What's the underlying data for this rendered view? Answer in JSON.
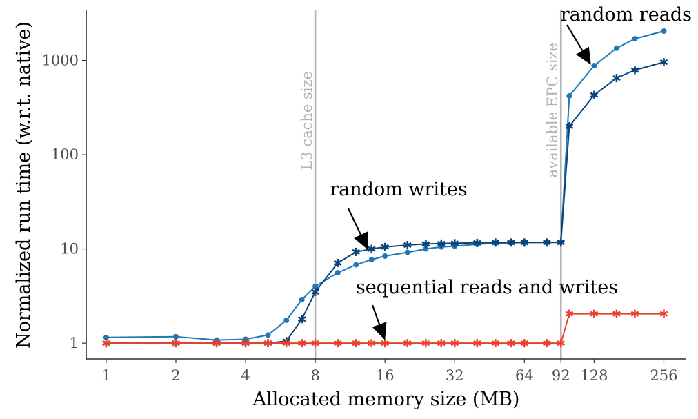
{
  "chart_data": {
    "type": "line",
    "title": "",
    "xlabel": "Allocated memory size (MB)",
    "ylabel": "Normalized run time (w.r.t. native)",
    "x_scale": "log2",
    "y_scale": "log10",
    "xlim": [
      0.82,
      320
    ],
    "ylim": [
      0.68,
      3400
    ],
    "x_ticks": [
      1,
      2,
      4,
      8,
      16,
      32,
      64,
      92,
      128,
      256
    ],
    "x_tick_labels": [
      "1",
      "2",
      "4",
      "8",
      "16",
      "32",
      "64",
      "92",
      "128",
      "256"
    ],
    "y_ticks": [
      1,
      10,
      100,
      1000
    ],
    "y_tick_labels": [
      "1",
      "10",
      "100",
      "1000"
    ],
    "grid": false,
    "legend": "none",
    "colors": {
      "random_reads": "#1f77b4",
      "random_writes": "#08447a",
      "sequential": "#e8402c",
      "reference_lines": "#b3b3b3"
    },
    "reference_lines": [
      {
        "x": 8,
        "label": "L3 cache size"
      },
      {
        "x": 92,
        "label": "available EPC size"
      }
    ],
    "annotations": [
      {
        "text": "random reads",
        "x": 124,
        "y": 900
      },
      {
        "text": "random writes",
        "x": 13.5,
        "y": 9.8
      },
      {
        "text": "sequential reads and writes",
        "x": 16,
        "y": 1.08
      }
    ],
    "series": [
      {
        "key": "random_reads",
        "marker": "circle",
        "x": [
          1,
          2,
          3,
          4,
          5,
          6,
          7,
          8,
          10,
          12,
          14,
          16,
          20,
          24,
          28,
          32,
          40,
          48,
          56,
          64,
          80,
          92,
          100,
          128,
          160,
          192,
          256
        ],
        "y": [
          1.15,
          1.17,
          1.08,
          1.1,
          1.22,
          1.75,
          2.9,
          4.0,
          5.6,
          6.8,
          7.7,
          8.4,
          9.2,
          10.0,
          10.5,
          10.7,
          11.2,
          11.5,
          11.6,
          11.7,
          11.7,
          11.8,
          420,
          880,
          1350,
          1700,
          2050
        ]
      },
      {
        "key": "random_writes",
        "marker": "asterisk",
        "x": [
          1,
          2,
          3,
          4,
          5,
          6,
          7,
          8,
          10,
          12,
          14,
          16,
          20,
          24,
          28,
          32,
          40,
          48,
          56,
          64,
          80,
          92,
          100,
          128,
          160,
          192,
          256
        ],
        "y": [
          1.0,
          1.0,
          1.0,
          1.0,
          1.0,
          1.05,
          1.8,
          3.5,
          7.1,
          9.3,
          10.0,
          10.5,
          11.0,
          11.3,
          11.4,
          11.5,
          11.6,
          11.7,
          11.7,
          11.7,
          11.7,
          11.7,
          200,
          430,
          650,
          790,
          960
        ]
      },
      {
        "key": "sequential",
        "marker": "asterisk",
        "x": [
          1,
          2,
          3,
          4,
          5,
          6,
          7,
          8,
          10,
          12,
          14,
          16,
          20,
          24,
          28,
          32,
          40,
          48,
          56,
          64,
          80,
          92,
          100,
          128,
          160,
          192,
          256
        ],
        "y": [
          1,
          1,
          1,
          1,
          1,
          1,
          1,
          1,
          1,
          1,
          1,
          1,
          1,
          1,
          1,
          1,
          1,
          1,
          1,
          1,
          1,
          1,
          2.05,
          2.05,
          2.05,
          2.05,
          2.05
        ]
      }
    ]
  }
}
